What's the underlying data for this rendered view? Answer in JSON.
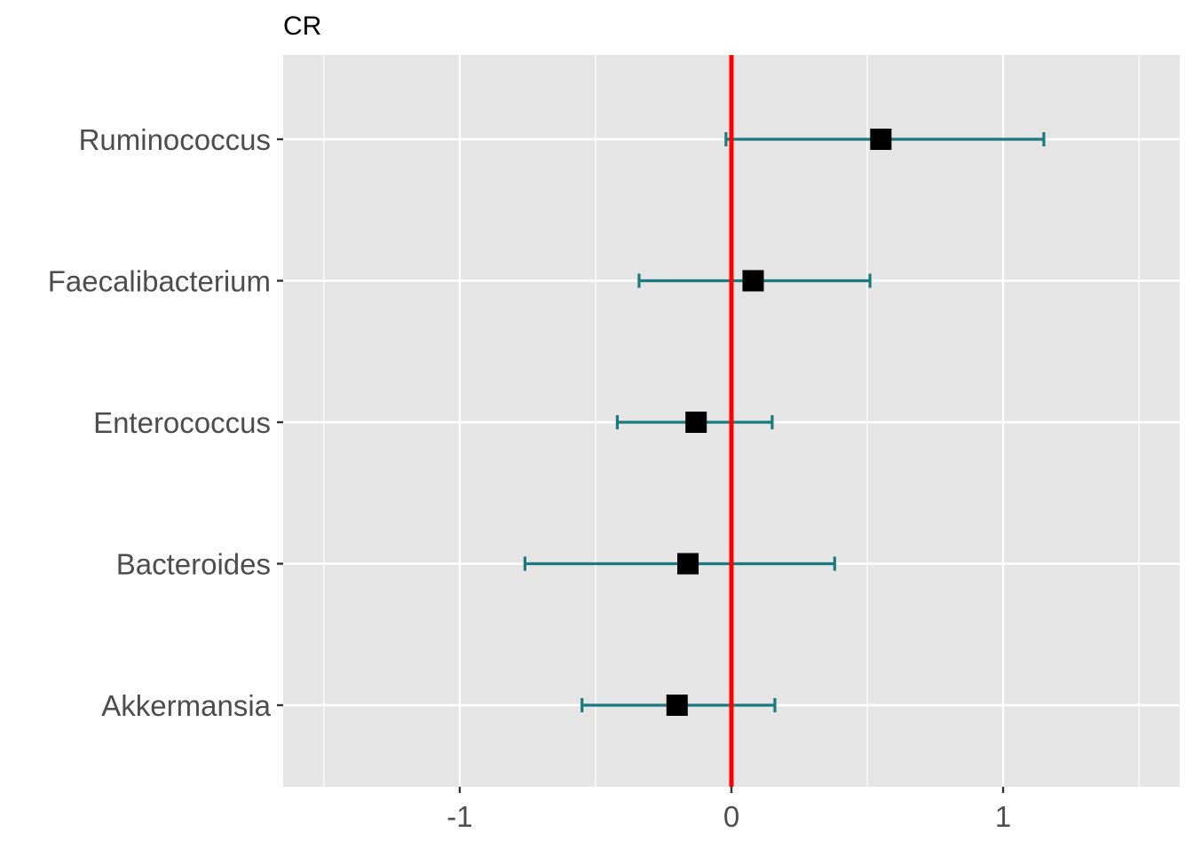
{
  "chart_data": {
    "type": "scatter",
    "subtype": "forest-plot",
    "title": "CR",
    "xlabel": "",
    "ylabel": "",
    "xlim": [
      -1.65,
      1.65
    ],
    "x_ticks": [
      -1,
      0,
      1
    ],
    "x_tick_labels": [
      "-1",
      "0",
      "1"
    ],
    "categories": [
      "Ruminococcus",
      "Faecalibacterium",
      "Enterococcus",
      "Bacteroides",
      "Akkermansia"
    ],
    "series": [
      {
        "estimate": [
          0.55,
          0.08,
          -0.13,
          -0.16,
          -0.2
        ],
        "lower": [
          -0.02,
          -0.34,
          -0.42,
          -0.76,
          -0.55
        ],
        "upper": [
          1.15,
          0.51,
          0.15,
          0.38,
          0.16
        ]
      }
    ],
    "reference_line": {
      "x": 0,
      "color": "#ff0000"
    },
    "grid": true,
    "legend": "none",
    "colors": {
      "panel_background": "#e5e5e5",
      "grid": "#ffffff",
      "error_bar": "#1b7a7f",
      "point": "#000000",
      "tick_label": "#4d4d4d"
    }
  }
}
